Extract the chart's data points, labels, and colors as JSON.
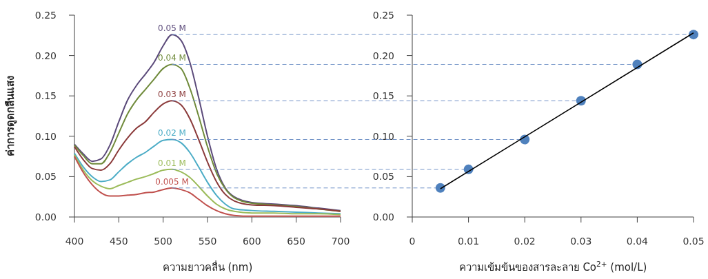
{
  "chart_data": [
    {
      "type": "line",
      "ylabel": "ค่าการดูดกลืนแสง",
      "xlabel": "ความยาวคลื่น (nm)",
      "x": [
        400,
        410,
        420,
        430,
        440,
        450,
        460,
        470,
        480,
        490,
        500,
        510,
        520,
        530,
        540,
        550,
        560,
        570,
        580,
        600,
        625,
        650,
        675,
        700
      ],
      "xlim": [
        400,
        700
      ],
      "xticks": [
        400,
        450,
        500,
        550,
        600,
        650,
        700
      ],
      "ylim": [
        0,
        0.25
      ],
      "yticks": [
        {
          "value": 0,
          "label": "0.00"
        },
        {
          "value": 0.05,
          "label": "0.05"
        },
        {
          "value": 0.1,
          "label": "0.10"
        },
        {
          "value": 0.15,
          "label": "0.15"
        },
        {
          "value": 0.2,
          "label": "0.20"
        },
        {
          "value": 0.25,
          "label": "0.25"
        }
      ],
      "series": [
        {
          "name": "0.05 M",
          "color": "#5b4a7a",
          "values": [
            0.09,
            0.078,
            0.069,
            0.072,
            0.089,
            0.118,
            0.145,
            0.163,
            0.177,
            0.192,
            0.212,
            0.226,
            0.219,
            0.192,
            0.148,
            0.1,
            0.06,
            0.036,
            0.025,
            0.018,
            0.016,
            0.014,
            0.011,
            0.008
          ]
        },
        {
          "name": "0.04 M",
          "color": "#6f8a3a",
          "values": [
            0.089,
            0.076,
            0.066,
            0.066,
            0.08,
            0.104,
            0.128,
            0.145,
            0.158,
            0.171,
            0.184,
            0.189,
            0.184,
            0.16,
            0.125,
            0.087,
            0.055,
            0.035,
            0.024,
            0.017,
            0.015,
            0.013,
            0.01,
            0.007
          ]
        },
        {
          "name": "0.03 M",
          "color": "#8b3a3a",
          "values": [
            0.087,
            0.071,
            0.06,
            0.058,
            0.066,
            0.083,
            0.098,
            0.11,
            0.118,
            0.13,
            0.14,
            0.144,
            0.139,
            0.122,
            0.096,
            0.068,
            0.044,
            0.028,
            0.02,
            0.015,
            0.014,
            0.012,
            0.01,
            0.007
          ]
        },
        {
          "name": "0.02 M",
          "color": "#4bacc6",
          "values": [
            0.079,
            0.062,
            0.05,
            0.044,
            0.046,
            0.056,
            0.066,
            0.074,
            0.08,
            0.088,
            0.095,
            0.096,
            0.092,
            0.08,
            0.062,
            0.043,
            0.027,
            0.016,
            0.01,
            0.008,
            0.007,
            0.006,
            0.005,
            0.004
          ]
        },
        {
          "name": "0.01 M",
          "color": "#9bbb59",
          "values": [
            0.077,
            0.058,
            0.045,
            0.038,
            0.035,
            0.039,
            0.043,
            0.047,
            0.05,
            0.054,
            0.058,
            0.059,
            0.056,
            0.049,
            0.038,
            0.026,
            0.016,
            0.01,
            0.007,
            0.005,
            0.005,
            0.004,
            0.004,
            0.003
          ]
        },
        {
          "name": "0.005 M",
          "color": "#c0504d",
          "values": [
            0.075,
            0.055,
            0.04,
            0.03,
            0.026,
            0.026,
            0.027,
            0.028,
            0.03,
            0.031,
            0.034,
            0.036,
            0.034,
            0.03,
            0.022,
            0.014,
            0.008,
            0.004,
            0.002,
            0.001,
            0.001,
            0.001,
            0.001,
            0.001
          ]
        }
      ]
    },
    {
      "type": "scatter",
      "xlabel": "ความเข้มข้นของสารละลาย Co$^{2+}$ (mol/L)",
      "xlim": [
        0,
        0.05
      ],
      "xticks": [
        0,
        0.01,
        0.02,
        0.03,
        0.04,
        0.05
      ],
      "ylim": [
        0,
        0.25
      ],
      "yticks": [
        {
          "value": 0,
          "label": "0.00"
        },
        {
          "value": 0.05,
          "label": "0.05"
        },
        {
          "value": 0.1,
          "label": "0.10"
        },
        {
          "value": 0.15,
          "label": "0.15"
        },
        {
          "value": 0.2,
          "label": "0.20"
        },
        {
          "value": 0.25,
          "label": "0.25"
        }
      ],
      "series": [
        {
          "marker": "circle",
          "color": "#4f81bd",
          "x": [
            0.005,
            0.01,
            0.02,
            0.03,
            0.04,
            0.05
          ],
          "values": [
            0.036,
            0.059,
            0.096,
            0.144,
            0.189,
            0.226
          ]
        },
        {
          "type": "line",
          "marker": "none",
          "color": "#000000",
          "x": [
            0.005,
            0.05
          ],
          "values": [
            0.035,
            0.228
          ]
        }
      ],
      "ref_lines": [
        {
          "axis": "y",
          "value": 0.226,
          "color": "#7394c8",
          "line_style": "dashed"
        },
        {
          "axis": "y",
          "value": 0.189,
          "color": "#7394c8",
          "line_style": "dashed"
        },
        {
          "axis": "y",
          "value": 0.144,
          "color": "#7394c8",
          "line_style": "dashed"
        },
        {
          "axis": "y",
          "value": 0.096,
          "color": "#7394c8",
          "line_style": "dashed"
        },
        {
          "axis": "y",
          "value": 0.059,
          "color": "#7394c8",
          "line_style": "dashed"
        },
        {
          "axis": "y",
          "value": 0.036,
          "color": "#7394c8",
          "line_style": "dashed"
        }
      ]
    }
  ]
}
